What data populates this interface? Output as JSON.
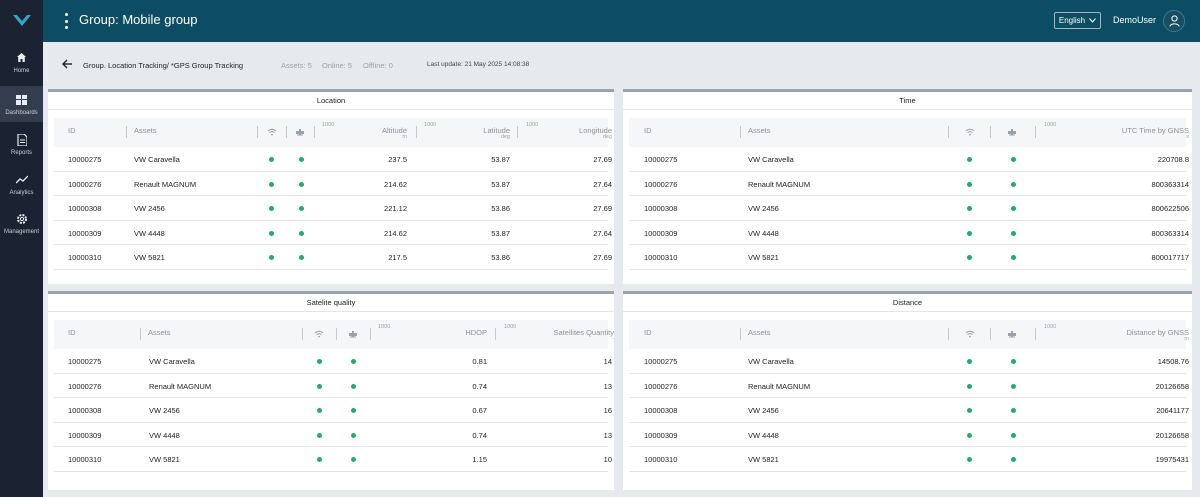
{
  "app": {
    "title": "Group: Mobile group",
    "user": "DemoUser",
    "language": "English"
  },
  "sidebar": {
    "items": [
      {
        "label": "Home",
        "icon": "home-icon"
      },
      {
        "label": "Dashboards",
        "icon": "dashboard-icon",
        "active": true
      },
      {
        "label": "Reports",
        "icon": "report-icon"
      },
      {
        "label": "Analytics",
        "icon": "analytics-icon"
      },
      {
        "label": "Management",
        "icon": "gear-icon"
      }
    ]
  },
  "subheader": {
    "breadcrumb": "Group. Location Tracking/ *GPS Group Tracking",
    "assets": "Assets: 5",
    "online": "Online: 5",
    "offline": "Offline: 0",
    "last_update": "Last update: 21 May 2025 14:08:38"
  },
  "common": {
    "col_id": "ID",
    "col_assets": "Assets",
    "scale": "1000"
  },
  "rows": [
    {
      "id": "10000275",
      "asset": "VW Caravella"
    },
    {
      "id": "10000276",
      "asset": "Renault MAGNUM"
    },
    {
      "id": "10000308",
      "asset": "VW 2456"
    },
    {
      "id": "10000309",
      "asset": "VW 4448"
    },
    {
      "id": "10000310",
      "asset": "VW 5821"
    }
  ],
  "location": {
    "title": "Location",
    "cols": {
      "altitude": {
        "label": "Altitude",
        "unit": "m"
      },
      "latitude": {
        "label": "Latitude",
        "unit": "deg"
      },
      "longitude": {
        "label": "Longitude",
        "unit": "deg"
      }
    },
    "values": [
      {
        "altitude": "237.5",
        "latitude": "53.87",
        "longitude": "27.69"
      },
      {
        "altitude": "214.62",
        "latitude": "53.87",
        "longitude": "27.64"
      },
      {
        "altitude": "221.12",
        "latitude": "53.86",
        "longitude": "27.69"
      },
      {
        "altitude": "214.62",
        "latitude": "53.87",
        "longitude": "27.64"
      },
      {
        "altitude": "217.5",
        "latitude": "53.86",
        "longitude": "27.69"
      }
    ]
  },
  "time": {
    "title": "Time",
    "col": {
      "label": "UTC Time by GNSS",
      "unit": "s"
    },
    "values": [
      "220708.8",
      "800363314",
      "800622506",
      "800363314",
      "800017717"
    ]
  },
  "satellite": {
    "title": "Satelite quality",
    "cols": {
      "hdop": {
        "label": "HDOP",
        "unit": ""
      },
      "sats": {
        "label": "Satellites Quantity",
        "unit": "-"
      }
    },
    "values": [
      {
        "hdop": "0.81",
        "sats": "14"
      },
      {
        "hdop": "0.74",
        "sats": "13"
      },
      {
        "hdop": "0.67",
        "sats": "16"
      },
      {
        "hdop": "0.74",
        "sats": "13"
      },
      {
        "hdop": "1.15",
        "sats": "10"
      }
    ]
  },
  "distance": {
    "title": "Distance",
    "col": {
      "label": "Distance by GNSS",
      "unit": "m"
    },
    "values": [
      "14508.76",
      "20126658",
      "20641177",
      "20126658",
      "19975431"
    ]
  },
  "colors": {
    "online": "#27a969",
    "topbar": "#0c4d63",
    "sidebar": "#1b2231"
  }
}
